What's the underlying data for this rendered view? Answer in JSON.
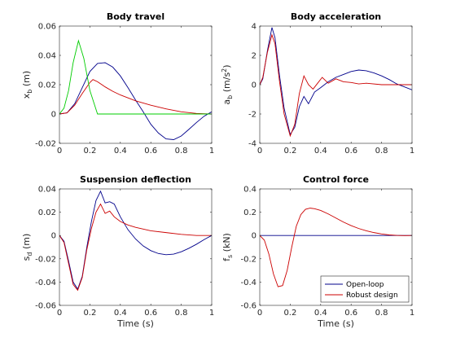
{
  "legend": {
    "items": [
      {
        "label": "Open-loop",
        "color": "#00008b"
      },
      {
        "label": "Robust design",
        "color": "#cc0000"
      }
    ],
    "placement": "bottom-right",
    "panel": 3
  },
  "chart_data": [
    {
      "type": "line",
      "title": "Body travel",
      "ylabel": "x",
      "ylabel_sub": "b",
      "ylabel_unit": " (m)",
      "xlabel": "",
      "xlim": [
        0,
        1
      ],
      "ylim": [
        -0.02,
        0.06
      ],
      "xticks": [
        "0",
        "0.2",
        "0.4",
        "0.6",
        "0.8",
        "1"
      ],
      "yticks": [
        "-0.02",
        "0",
        "0.02",
        "0.04",
        "0.06"
      ],
      "series": [
        {
          "color": "#00008b",
          "x": [
            0,
            0.05,
            0.1,
            0.15,
            0.2,
            0.25,
            0.3,
            0.35,
            0.4,
            0.45,
            0.5,
            0.55,
            0.6,
            0.65,
            0.7,
            0.75,
            0.8,
            0.85,
            0.9,
            0.95,
            1.0
          ],
          "y": [
            0,
            0.0008,
            0.007,
            0.018,
            0.029,
            0.0345,
            0.035,
            0.032,
            0.026,
            0.018,
            0.0095,
            0.0015,
            -0.007,
            -0.013,
            -0.017,
            -0.0175,
            -0.015,
            -0.0105,
            -0.0058,
            -0.0015,
            0.0015
          ]
        },
        {
          "color": "#cc0000",
          "x": [
            0,
            0.05,
            0.1,
            0.15,
            0.2,
            0.22,
            0.25,
            0.3,
            0.35,
            0.4,
            0.45,
            0.5,
            0.6,
            0.7,
            0.8,
            0.9,
            1.0
          ],
          "y": [
            0,
            0.0008,
            0.006,
            0.014,
            0.0215,
            0.0235,
            0.022,
            0.0185,
            0.0155,
            0.013,
            0.011,
            0.009,
            0.006,
            0.0035,
            0.0015,
            0.0004,
            0
          ]
        },
        {
          "color": "#00cc00",
          "x": [
            0,
            0.03,
            0.06,
            0.09,
            0.125,
            0.16,
            0.2,
            0.25,
            1.0
          ],
          "y": [
            0,
            0.004,
            0.016,
            0.035,
            0.05,
            0.038,
            0.016,
            0,
            0
          ]
        }
      ]
    },
    {
      "type": "line",
      "title": "Body acceleration",
      "ylabel": "a",
      "ylabel_sub": "b",
      "ylabel_unit": " (m/s",
      "ylabel_sup": "2",
      "ylabel_end": ")",
      "xlabel": "",
      "xlim": [
        0,
        1
      ],
      "ylim": [
        -4,
        4
      ],
      "xticks": [
        "0",
        "0.2",
        "0.4",
        "0.6",
        "0.8",
        "1"
      ],
      "yticks": [
        "-4",
        "-2",
        "0",
        "2",
        "4"
      ],
      "series": [
        {
          "color": "#00008b",
          "x": [
            0,
            0.02,
            0.05,
            0.08,
            0.1,
            0.13,
            0.16,
            0.2,
            0.23,
            0.26,
            0.29,
            0.32,
            0.36,
            0.4,
            0.45,
            0.5,
            0.55,
            0.6,
            0.65,
            0.7,
            0.75,
            0.8,
            0.85,
            0.9,
            0.95,
            1.0
          ],
          "y": [
            0,
            0.4,
            2.3,
            3.9,
            3.2,
            0.6,
            -1.6,
            -3.4,
            -2.9,
            -1.5,
            -0.8,
            -1.3,
            -0.5,
            -0.2,
            0.2,
            0.5,
            0.7,
            0.9,
            1.0,
            0.95,
            0.8,
            0.6,
            0.35,
            0.05,
            -0.15,
            -0.35
          ]
        },
        {
          "color": "#cc0000",
          "x": [
            0,
            0.02,
            0.05,
            0.08,
            0.1,
            0.13,
            0.16,
            0.2,
            0.23,
            0.26,
            0.29,
            0.32,
            0.35,
            0.38,
            0.41,
            0.45,
            0.5,
            0.55,
            0.6,
            0.65,
            0.7,
            0.8,
            0.9,
            1.0
          ],
          "y": [
            0,
            0.5,
            2.2,
            3.4,
            2.8,
            0.2,
            -2.0,
            -3.5,
            -2.7,
            -0.6,
            0.6,
            0.0,
            -0.3,
            0.1,
            0.5,
            0.1,
            0.4,
            0.2,
            0.15,
            0.05,
            0.1,
            0.0,
            0.0,
            0.0
          ]
        }
      ]
    },
    {
      "type": "line",
      "title": "Suspension deflection",
      "ylabel": "s",
      "ylabel_sub": "d",
      "ylabel_unit": " (m)",
      "xlabel": "Time (s)",
      "xlim": [
        0,
        1
      ],
      "ylim": [
        -0.06,
        0.04
      ],
      "xticks": [
        "0",
        "0.2",
        "0.4",
        "0.6",
        "0.8",
        "1"
      ],
      "yticks": [
        "-0.06",
        "-0.04",
        "-0.02",
        "0",
        "0.02",
        "0.04"
      ],
      "series": [
        {
          "color": "#00008b",
          "x": [
            0,
            0.03,
            0.06,
            0.09,
            0.12,
            0.15,
            0.18,
            0.21,
            0.24,
            0.27,
            0.3,
            0.33,
            0.36,
            0.4,
            0.45,
            0.5,
            0.55,
            0.6,
            0.65,
            0.7,
            0.75,
            0.8,
            0.85,
            0.9,
            0.95,
            1.0
          ],
          "y": [
            0,
            -0.005,
            -0.022,
            -0.04,
            -0.046,
            -0.035,
            -0.01,
            0.012,
            0.03,
            0.038,
            0.028,
            0.029,
            0.027,
            0.016,
            0.005,
            -0.003,
            -0.009,
            -0.013,
            -0.0155,
            -0.0165,
            -0.016,
            -0.014,
            -0.011,
            -0.0075,
            -0.0035,
            0
          ]
        },
        {
          "color": "#cc0000",
          "x": [
            0,
            0.03,
            0.06,
            0.09,
            0.12,
            0.15,
            0.18,
            0.21,
            0.24,
            0.27,
            0.3,
            0.33,
            0.36,
            0.4,
            0.45,
            0.5,
            0.6,
            0.7,
            0.8,
            0.9,
            1.0
          ],
          "y": [
            0,
            -0.006,
            -0.024,
            -0.042,
            -0.047,
            -0.036,
            -0.012,
            0.006,
            0.02,
            0.027,
            0.019,
            0.021,
            0.016,
            0.012,
            0.009,
            0.007,
            0.004,
            0.0025,
            0.001,
            0,
            0
          ]
        }
      ]
    },
    {
      "type": "line",
      "title": "Control force",
      "ylabel": "f",
      "ylabel_sub": "s",
      "ylabel_unit": " (kN)",
      "xlabel": "Time (s)",
      "xlim": [
        0,
        1
      ],
      "ylim": [
        -0.6,
        0.4
      ],
      "xticks": [
        "0",
        "0.2",
        "0.4",
        "0.6",
        "0.8",
        "1"
      ],
      "yticks": [
        "-0.6",
        "-0.4",
        "-0.2",
        "0",
        "0.2",
        "0.4"
      ],
      "series": [
        {
          "color": "#00008b",
          "x": [
            0,
            1
          ],
          "y": [
            0,
            0
          ]
        },
        {
          "color": "#cc0000",
          "x": [
            0,
            0.03,
            0.06,
            0.09,
            0.12,
            0.15,
            0.18,
            0.21,
            0.24,
            0.27,
            0.3,
            0.33,
            0.36,
            0.4,
            0.45,
            0.5,
            0.55,
            0.6,
            0.65,
            0.7,
            0.75,
            0.8,
            0.85,
            0.9,
            0.95,
            1.0
          ],
          "y": [
            0,
            -0.04,
            -0.16,
            -0.33,
            -0.44,
            -0.43,
            -0.3,
            -0.1,
            0.08,
            0.18,
            0.225,
            0.235,
            0.23,
            0.215,
            0.185,
            0.15,
            0.115,
            0.085,
            0.06,
            0.04,
            0.025,
            0.013,
            0.005,
            0.001,
            -0.001,
            0
          ]
        }
      ]
    }
  ]
}
